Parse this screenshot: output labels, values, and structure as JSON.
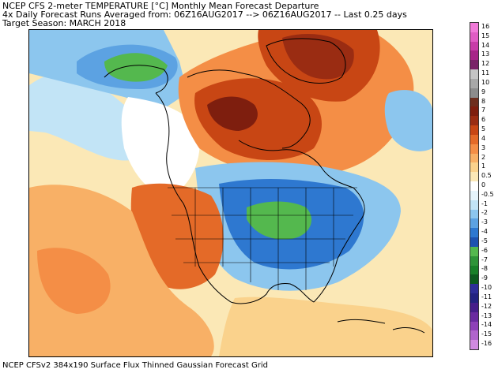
{
  "header": {
    "line1": "NCEP CFS 2-meter TEMPERATURE [°C] Monthly Mean Forecast Departure",
    "line2": "4x Daily Forecast Runs Averaged from: 06Z16AUG2017 --> 06Z16AUG2017 -- Last 0.25 days",
    "line3": "Target Season: MARCH 2018"
  },
  "footer": "NCEP CFSv2 384x190 Surface Flux Thinned Gaussian Forecast Grid",
  "colorbar": {
    "labels": [
      "16",
      "15",
      "14",
      "13",
      "12",
      "11",
      "10",
      "9",
      "8",
      "7",
      "6",
      "5",
      "4",
      "3",
      "2",
      "1",
      "0.5",
      "0",
      "-0.5",
      "-1",
      "-2",
      "-3",
      "-4",
      "-5",
      "-6",
      "-7",
      "-8",
      "-9",
      "-10",
      "-11",
      "-12",
      "-13",
      "-14",
      "-15",
      "-16"
    ],
    "colors": [
      "#f07ad8",
      "#e05cc4",
      "#c83ca8",
      "#a82488",
      "#7a2468",
      "#c4c4c4",
      "#a8a8a8",
      "#8c8c8c",
      "#6e2e1e",
      "#7e1e0e",
      "#9a2c12",
      "#c84614",
      "#e46a28",
      "#f48e46",
      "#f8b066",
      "#fad28c",
      "#fbe8b6",
      "#ffffff",
      "#e6f4fb",
      "#c2e4f6",
      "#8cc6ee",
      "#5ca2e2",
      "#2e78d0",
      "#1e52b0",
      "#54b84e",
      "#2e9438",
      "#188028",
      "#0c5a1e",
      "#2e2e98",
      "#232380",
      "#461e8a",
      "#6a2aa0",
      "#8e40b8",
      "#b064cc",
      "#d08ae0"
    ]
  },
  "map": {
    "title": "",
    "regions": [
      "Alaska",
      "Canada",
      "United States",
      "Mexico",
      "Greenland"
    ],
    "anomaly_patterns": [
      {
        "region": "Canada / Hudson Bay",
        "sign": "warm",
        "peak_c": 8
      },
      {
        "region": "Greenland",
        "sign": "warm",
        "peak_c": 8
      },
      {
        "region": "Central/Eastern US",
        "sign": "cold",
        "peak_c": -3
      },
      {
        "region": "Alaska",
        "sign": "cold",
        "peak_c": -3
      },
      {
        "region": "Western US / Mexico",
        "sign": "warm",
        "peak_c": 3
      }
    ]
  }
}
